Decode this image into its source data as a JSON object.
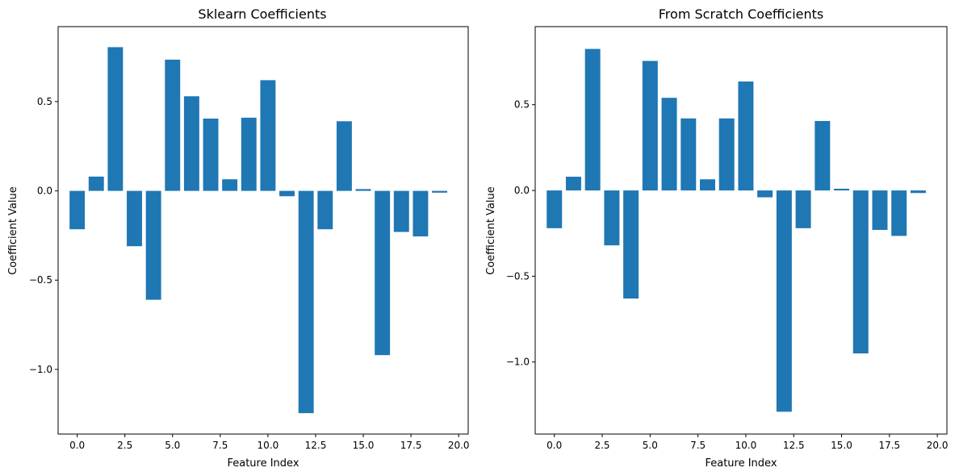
{
  "chart_data": [
    {
      "type": "bar",
      "title": "Sklearn Coefficients",
      "xlabel": "Feature Index",
      "ylabel": "Coefficient Value",
      "x": [
        0,
        1,
        2,
        3,
        4,
        5,
        6,
        7,
        8,
        9,
        10,
        11,
        12,
        13,
        14,
        15,
        16,
        17,
        18,
        19
      ],
      "values": [
        -0.215,
        0.08,
        0.805,
        -0.31,
        -0.61,
        0.735,
        0.53,
        0.405,
        0.065,
        0.41,
        0.62,
        -0.03,
        -1.245,
        -0.215,
        0.39,
        0.01,
        -0.92,
        -0.23,
        -0.255,
        -0.01
      ],
      "xlim": [
        -1.0,
        20.5
      ],
      "ylim": [
        -1.362,
        0.92
      ],
      "xticks": [
        0.0,
        2.5,
        5.0,
        7.5,
        10.0,
        12.5,
        15.0,
        17.5,
        20.0
      ],
      "xtick_labels": [
        "0.0",
        "2.5",
        "5.0",
        "7.5",
        "10.0",
        "12.5",
        "15.0",
        "17.5",
        "20.0"
      ],
      "yticks": [
        -1.0,
        -0.5,
        0.0,
        0.5
      ],
      "ytick_labels": [
        "−1.0",
        "−0.5",
        "0.0",
        "0.5"
      ],
      "bar_width": 0.8,
      "grid": false,
      "color": "#1f77b4"
    },
    {
      "type": "bar",
      "title": "From Scratch Coefficients",
      "xlabel": "Feature Index",
      "ylabel": "Coefficient Value",
      "x": [
        0,
        1,
        2,
        3,
        4,
        5,
        6,
        7,
        8,
        9,
        10,
        11,
        12,
        13,
        14,
        15,
        16,
        17,
        18,
        19
      ],
      "values": [
        -0.22,
        0.08,
        0.825,
        -0.32,
        -0.63,
        0.755,
        0.54,
        0.42,
        0.065,
        0.42,
        0.635,
        -0.04,
        -1.29,
        -0.22,
        0.405,
        0.01,
        -0.95,
        -0.23,
        -0.265,
        -0.015
      ],
      "xlim": [
        -1.0,
        20.5
      ],
      "ylim": [
        -1.42,
        0.955
      ],
      "xticks": [
        0.0,
        2.5,
        5.0,
        7.5,
        10.0,
        12.5,
        15.0,
        17.5,
        20.0
      ],
      "xtick_labels": [
        "0.0",
        "2.5",
        "5.0",
        "7.5",
        "10.0",
        "12.5",
        "15.0",
        "17.5",
        "20.0"
      ],
      "yticks": [
        -1.0,
        -0.5,
        0.0,
        0.5
      ],
      "ytick_labels": [
        "−1.0",
        "−0.5",
        "0.0",
        "0.5"
      ],
      "bar_width": 0.8,
      "grid": false,
      "color": "#1f77b4"
    }
  ]
}
